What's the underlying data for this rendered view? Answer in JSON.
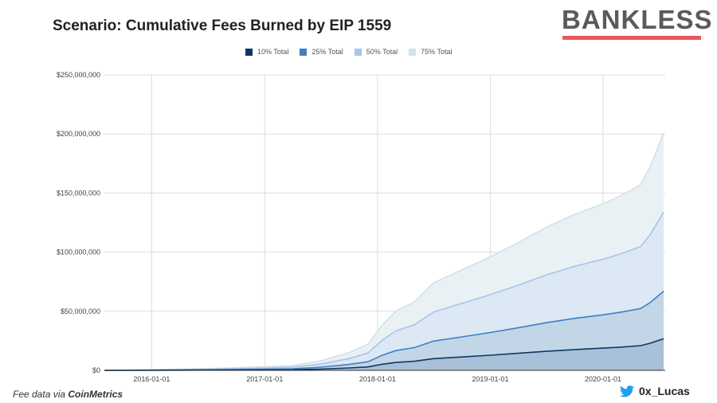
{
  "branding": {
    "logo": "BANKLESS",
    "source_prefix": "Fee data via",
    "source_name": "CoinMetrics",
    "twitter_handle": "0x_Lucas"
  },
  "chart_data": {
    "type": "area",
    "title": "Scenario: Cumulative Fees Burned by EIP 1559",
    "xlabel": "",
    "ylabel": "",
    "ylim": [
      0,
      250000000
    ],
    "xlim": [
      "2015-08-01",
      "2020-07-20"
    ],
    "yticks": [
      "$0",
      "$50,000,000",
      "$100,000,000",
      "$150,000,000",
      "$200,000,000",
      "$250,000,000"
    ],
    "xticks": [
      "2016-01-01",
      "2017-01-01",
      "2018-01-01",
      "2019-01-01",
      "2020-01-01"
    ],
    "grid": true,
    "legend_position": "top",
    "x": [
      "2015-08-01",
      "2016-01-01",
      "2016-07-01",
      "2017-01-01",
      "2017-04-01",
      "2017-07-01",
      "2017-10-01",
      "2017-12-01",
      "2018-01-15",
      "2018-03-01",
      "2018-05-01",
      "2018-07-01",
      "2018-10-01",
      "2019-01-01",
      "2019-04-01",
      "2019-07-01",
      "2019-10-01",
      "2020-01-01",
      "2020-03-01",
      "2020-05-01",
      "2020-06-01",
      "2020-07-15"
    ],
    "series": [
      {
        "name": "75% Total",
        "color": "#d3e1ea",
        "fill": "#eaf1f4",
        "values": [
          0,
          0.5,
          1.5,
          3,
          4,
          8,
          15,
          22,
          38,
          50,
          58,
          74,
          85,
          96,
          108,
          121,
          132,
          141,
          148,
          157,
          172,
          201
        ]
      },
      {
        "name": "50% Total",
        "color": "#a6c5ec",
        "fill": "#dce8f3",
        "values": [
          0,
          0.3,
          1,
          2,
          2.7,
          5.3,
          10,
          14.7,
          25.3,
          33.3,
          38.7,
          49.3,
          56.7,
          64,
          72,
          80.7,
          88,
          94,
          98.7,
          104.7,
          114.7,
          134
        ]
      },
      {
        "name": "25% Total",
        "color": "#3f7fc3",
        "fill": "#c3d6e8",
        "values": [
          0,
          0.2,
          0.5,
          1,
          1.3,
          2.7,
          5,
          7.3,
          12.7,
          16.7,
          19.3,
          24.7,
          28.3,
          32,
          36,
          40.3,
          44,
          47,
          49.3,
          52.3,
          57.3,
          67
        ]
      },
      {
        "name": "10% Total",
        "color": "#0e3763",
        "fill": "#a9c1d8",
        "values": [
          0,
          0.1,
          0.2,
          0.4,
          0.5,
          1.1,
          2,
          2.9,
          5.1,
          6.7,
          7.7,
          9.9,
          11.3,
          12.8,
          14.4,
          16.1,
          17.6,
          18.8,
          19.7,
          20.9,
          22.9,
          26.8
        ]
      }
    ],
    "value_unit": "millions USD"
  }
}
